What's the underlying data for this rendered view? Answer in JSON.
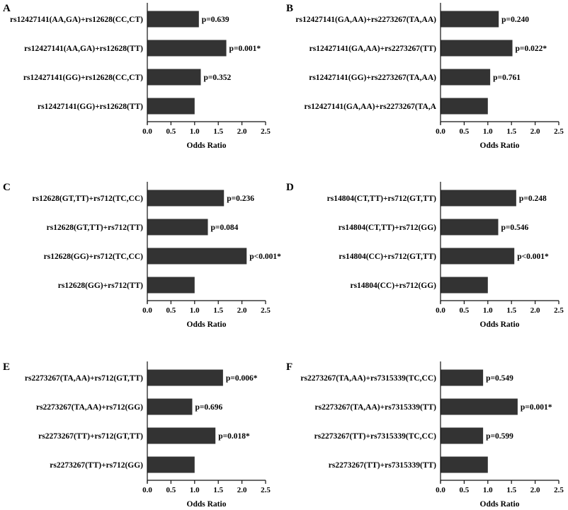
{
  "colors": {
    "bar": "#333333",
    "axis": "#111111",
    "background": "#ffffff"
  },
  "chart_data": [
    {
      "panel": "A",
      "type": "bar",
      "orientation": "horizontal",
      "xlabel": "Odds Ratio",
      "xlim": [
        0,
        2.5
      ],
      "xticks": [
        "0.0",
        "0.5",
        "1.0",
        "1.5",
        "2.0",
        "2.5"
      ],
      "categories": [
        "rs12427141(AA,GA)+rs12628(CC,CT)",
        "rs12427141(AA,GA)+rs12628(TT)",
        "rs12427141(GG)+rs12628(CC,CT)",
        "rs12427141(GG)+rs12628(TT)"
      ],
      "values": [
        1.09,
        1.67,
        1.13,
        1.0
      ],
      "annotations": [
        "p=0.639",
        "p=0.001*",
        "p=0.352",
        ""
      ]
    },
    {
      "panel": "B",
      "type": "bar",
      "orientation": "horizontal",
      "xlabel": "Odds Ratio",
      "xlim": [
        0,
        2.5
      ],
      "xticks": [
        "0.0",
        "0.5",
        "1.0",
        "1.5",
        "2.0",
        "2.5"
      ],
      "categories": [
        "rs12427141(GA,AA)+rs2273267(TA,AA)",
        "rs12427141(GA,AA)+rs2273267(TT)",
        "rs12427141(GG)+rs2273267(TA,AA)",
        "rs12427141(GA,AA)+rs2273267(TA,A"
      ],
      "values": [
        1.23,
        1.52,
        1.05,
        1.0
      ],
      "annotations": [
        "p=0.240",
        "p=0.022*",
        "p=0.761",
        ""
      ]
    },
    {
      "panel": "C",
      "type": "bar",
      "orientation": "horizontal",
      "xlabel": "Odds Ratio",
      "xlim": [
        0,
        2.5
      ],
      "xticks": [
        "0.0",
        "0.5",
        "1.0",
        "1.5",
        "2.0",
        "2.5"
      ],
      "categories": [
        "rs12628(GT,TT)+rs712(TC,CC)",
        "rs12628(GT,TT)+rs712(TT)",
        "rs12628(GG)+rs712(TC,CC)",
        "rs12628(GG)+rs712(TT)"
      ],
      "values": [
        1.62,
        1.28,
        2.1,
        1.0
      ],
      "annotations": [
        "p=0.236",
        "p=0.084",
        "p<0.001*",
        ""
      ]
    },
    {
      "panel": "D",
      "type": "bar",
      "orientation": "horizontal",
      "xlabel": "Odds Ratio",
      "xlim": [
        0,
        2.5
      ],
      "xticks": [
        "0.0",
        "0.5",
        "1.0",
        "1.5",
        "2.0",
        "2.5"
      ],
      "categories": [
        "rs14804(CT,TT)+rs712(GT,TT)",
        "rs14804(CT,TT)+rs712(GG)",
        "rs14804(CC)+rs712(GT,TT)",
        "rs14804(CC)+rs712(GG)"
      ],
      "values": [
        1.6,
        1.22,
        1.56,
        1.0
      ],
      "annotations": [
        "p=0.248",
        "p=0.546",
        "p<0.001*",
        ""
      ]
    },
    {
      "panel": "E",
      "type": "bar",
      "orientation": "horizontal",
      "xlabel": "Odds Ratio",
      "xlim": [
        0,
        2.5
      ],
      "xticks": [
        "0.0",
        "0.5",
        "1.0",
        "1.5",
        "2.0",
        "2.5"
      ],
      "categories": [
        "rs2273267(TA,AA)+rs712(GT,TT)",
        "rs2273267(TA,AA)+rs712(GG)",
        "rs2273267(TT)+rs712(GT,TT)",
        "rs2273267(TT)+rs712(GG)"
      ],
      "values": [
        1.6,
        0.95,
        1.44,
        1.0
      ],
      "annotations": [
        "p=0.006*",
        "p=0.696",
        "p=0.018*",
        ""
      ]
    },
    {
      "panel": "F",
      "type": "bar",
      "orientation": "horizontal",
      "xlabel": "Odds Ratio",
      "xlim": [
        0,
        2.5
      ],
      "xticks": [
        "0.0",
        "0.5",
        "1.0",
        "1.5",
        "2.0",
        "2.5"
      ],
      "categories": [
        "rs2273267(TA,AA)+rs7315339(TC,CC)",
        "rs2273267(TA,AA)+rs7315339(TT)",
        "rs2273267(TT)+rs7315339(TC,CC)",
        "rs2273267(TT)+rs7315339(TT)"
      ],
      "values": [
        0.9,
        1.63,
        0.9,
        1.0
      ],
      "annotations": [
        "p=0.549",
        "p=0.001*",
        "p=0.599",
        ""
      ]
    }
  ]
}
